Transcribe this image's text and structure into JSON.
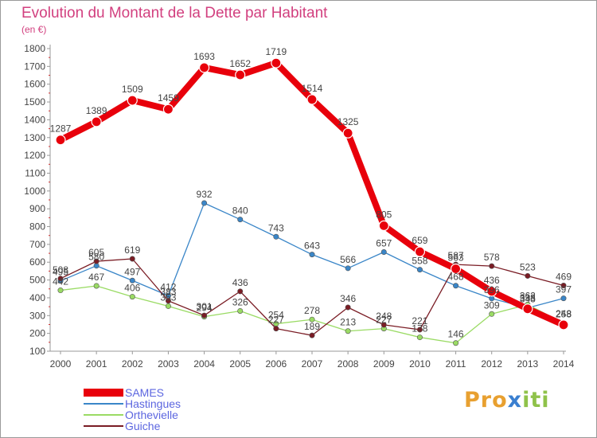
{
  "title": "Evolution du Montant de la Dette par Habitant",
  "unit": "(en €)",
  "logo": {
    "p1": "Pro",
    "p2": "x",
    "p3": "iti"
  },
  "chart_data": {
    "type": "line",
    "title": "Evolution du Montant de la Dette par Habitant",
    "ylabel": "(en €)",
    "xlabel": "",
    "ylim": [
      100,
      1800
    ],
    "yticks": [
      "100",
      "200",
      "300",
      "400",
      "500",
      "600",
      "700",
      "800",
      "900",
      "1000",
      "1100",
      "1200",
      "1300",
      "1400",
      "1500",
      "1600",
      "1700",
      "1800"
    ],
    "x": [
      "2000",
      "2001",
      "2002",
      "2003",
      "2004",
      "2005",
      "2006",
      "2007",
      "2008",
      "2009",
      "2010",
      "2011",
      "2012",
      "2013",
      "2014"
    ],
    "grid": false,
    "legend": "bottom-left",
    "series": [
      {
        "name": "SAMES",
        "color": "#e8000b",
        "values": [
          1287,
          1389,
          1509,
          1459,
          1693,
          1652,
          1719,
          1514,
          1325,
          805,
          659,
          563,
          436,
          338,
          248
        ]
      },
      {
        "name": "Hastingues",
        "color": "#3a86c8",
        "values": [
          495,
          580,
          497,
          412,
          932,
          840,
          743,
          643,
          566,
          657,
          558,
          468,
          396,
          343,
          397
        ]
      },
      {
        "name": "Orthevielle",
        "color": "#9adb64",
        "values": [
          442,
          467,
          406,
          353,
          294,
          326,
          254,
          278,
          213,
          227,
          178,
          146,
          309,
          362,
          258
        ]
      },
      {
        "name": "Guiche",
        "color": "#7a1c24",
        "values": [
          508,
          605,
          619,
          383,
          301,
          436,
          227,
          189,
          346,
          248,
          221,
          587,
          578,
          523,
          469
        ]
      }
    ],
    "point_labels": [
      {
        "series": "SAMES",
        "values": [
          "1287",
          "1389",
          "1509",
          "1459",
          "1693",
          "1652",
          "1719",
          "1514",
          "1325",
          "805",
          "659",
          "563",
          "436",
          "338",
          "248"
        ]
      },
      {
        "series": "Hastingues",
        "values": [
          "495",
          "580",
          "497",
          "412",
          "932",
          "840",
          "743",
          "643",
          "566",
          "657",
          "558",
          "468",
          "396",
          "343",
          "397"
        ]
      },
      {
        "series": "Orthevielle",
        "values": [
          "442",
          "467",
          "406",
          "353",
          "294",
          "326",
          "254",
          "278",
          "213",
          "227",
          "178",
          "146",
          "309",
          "362",
          "258"
        ]
      },
      {
        "series": "Guiche",
        "values": [
          "508",
          "605",
          "619",
          "383",
          "301",
          "436",
          "227",
          "189",
          "346",
          "248",
          "221",
          "587",
          "578",
          "523",
          "469"
        ]
      }
    ]
  }
}
